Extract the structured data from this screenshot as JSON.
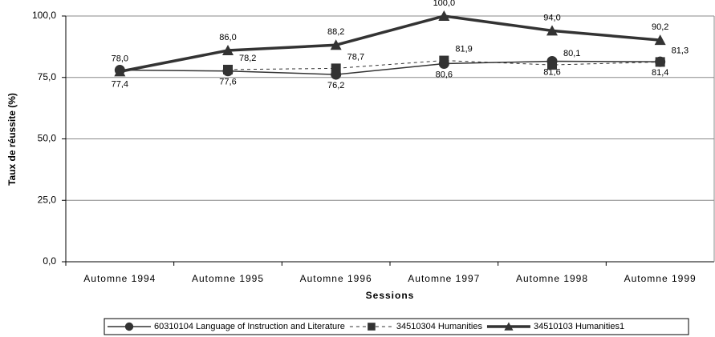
{
  "chart_data": {
    "type": "line",
    "y_label": "Taux de réussite (%)",
    "x_label": "Sessions",
    "categories": [
      "Automne 1994",
      "Automne 1995",
      "Automne 1996",
      "Automne 1997",
      "Automne 1998",
      "Automne 1999"
    ],
    "ylim": [
      0,
      100
    ],
    "yticks": [
      {
        "value": 0,
        "label": "0,0"
      },
      {
        "value": 25,
        "label": "25,0"
      },
      {
        "value": 50,
        "label": "50,0"
      },
      {
        "value": 75,
        "label": "75,0"
      },
      {
        "value": 100,
        "label": "100,0"
      }
    ],
    "grid": true,
    "legend": "bottom",
    "series": [
      {
        "name": "60310104 Language of Instruction and Literature",
        "color": "#333333",
        "marker": "circle",
        "line_style": "solid",
        "line_width": 1.5,
        "values": [
          78.0,
          77.6,
          76.2,
          80.6,
          81.6,
          81.4
        ],
        "value_labels": [
          "78,0",
          "77,6",
          "76,2",
          "80,6",
          "81,6",
          "81,4"
        ]
      },
      {
        "name": "34510304 Humanities",
        "color": "#333333",
        "marker": "square",
        "line_style": "dashed",
        "line_width": 1,
        "values": [
          null,
          78.2,
          78.7,
          81.9,
          80.1,
          81.3
        ],
        "value_labels": [
          null,
          "78,2",
          "78,7",
          "81,9",
          "80,1",
          "81,3"
        ]
      },
      {
        "name": "34510103 Humanities1",
        "color": "#333333",
        "marker": "triangle",
        "line_style": "solid",
        "line_width": 3.5,
        "values": [
          77.4,
          86.0,
          88.2,
          100.0,
          94.0,
          90.2
        ],
        "value_labels": [
          "77,4",
          "86,0",
          "88,2",
          "100,0",
          "94,0",
          "90,2"
        ]
      }
    ]
  }
}
